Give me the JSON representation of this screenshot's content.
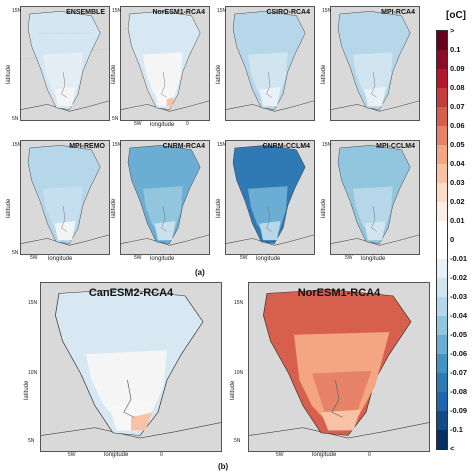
{
  "colorbar": {
    "unit": "[oC]",
    "labels": [
      ">",
      "0.1",
      "0.09",
      "0.08",
      "0.07",
      "0.06",
      "0.05",
      "0.04",
      "0.03",
      "0.02",
      "0.01",
      "0",
      "-0.01",
      "-0.02",
      "-0.03",
      "-0.04",
      "-0.05",
      "-0.06",
      "-0.07",
      "-0.08",
      "-0.09",
      "-0.1",
      "<"
    ],
    "colors": [
      "#67001f",
      "#8b0c27",
      "#b2182b",
      "#c53d3b",
      "#d6604d",
      "#e58267",
      "#f4a582",
      "#f7c2a6",
      "#fbdcc8",
      "#fdeee4",
      "#ffffff",
      "#ffffff",
      "#e8f1f8",
      "#d1e5f0",
      "#b6d6e9",
      "#92c5de",
      "#6caed3",
      "#4393c3",
      "#2f79b5",
      "#2166ac",
      "#134b87",
      "#053061"
    ]
  },
  "captions": {
    "a": "(a)",
    "b": "(b)"
  },
  "axes": {
    "latitude": "latitude",
    "longitude": "longitude",
    "lat_ticks": [
      "15N",
      "10N",
      "5N"
    ],
    "lon_ticks": [
      "5W",
      "0"
    ]
  },
  "panels": [
    {
      "title": "ENSEMBLE",
      "outer": "#d4e6f2",
      "inner": "#e4eef6",
      "south": "#f2f4f6",
      "accent": ""
    },
    {
      "title": "NorESM1-RCA4",
      "outer": "#d8e8f3",
      "inner": "#f5f5f5",
      "south": "#f7f7f7",
      "accent": "#f7c2a6"
    },
    {
      "title": "CSIRO-RCA4",
      "outer": "#b6d6e9",
      "inner": "#d1e5f0",
      "south": "#e8f1f8",
      "accent": ""
    },
    {
      "title": "MPI-RCA4",
      "outer": "#b6d6e9",
      "inner": "#d1e5f0",
      "south": "#e8f1f8",
      "accent": ""
    },
    {
      "title": "MPI-REMO",
      "outer": "#b6d6e9",
      "inner": "#c6dff0",
      "south": "#f2f4f6",
      "accent": ""
    },
    {
      "title": "CNRM-RCA4",
      "outer": "#6caed3",
      "inner": "#92c5de",
      "south": "#c9e0ef",
      "accent": ""
    },
    {
      "title": "CNRM-CCLM4",
      "outer": "#2f79b5",
      "inner": "#6caed3",
      "south": "#b6d6e9",
      "accent": ""
    },
    {
      "title": "MPI-CCLM4",
      "outer": "#92c5de",
      "inner": "#b6d6e9",
      "south": "#d1e5f0",
      "accent": ""
    }
  ],
  "big_panels": [
    {
      "title": "CanESM2-RCA4",
      "outer": "#d8e8f3",
      "inner": "#f5f5f5",
      "south": "#f7f7f7",
      "accent": "#f7c2a6"
    },
    {
      "title": "NorESM1-RCA4",
      "outer": "#d6604d",
      "inner": "#f4a582",
      "south": "#f7c2a6",
      "accent": "#e58267"
    }
  ]
}
